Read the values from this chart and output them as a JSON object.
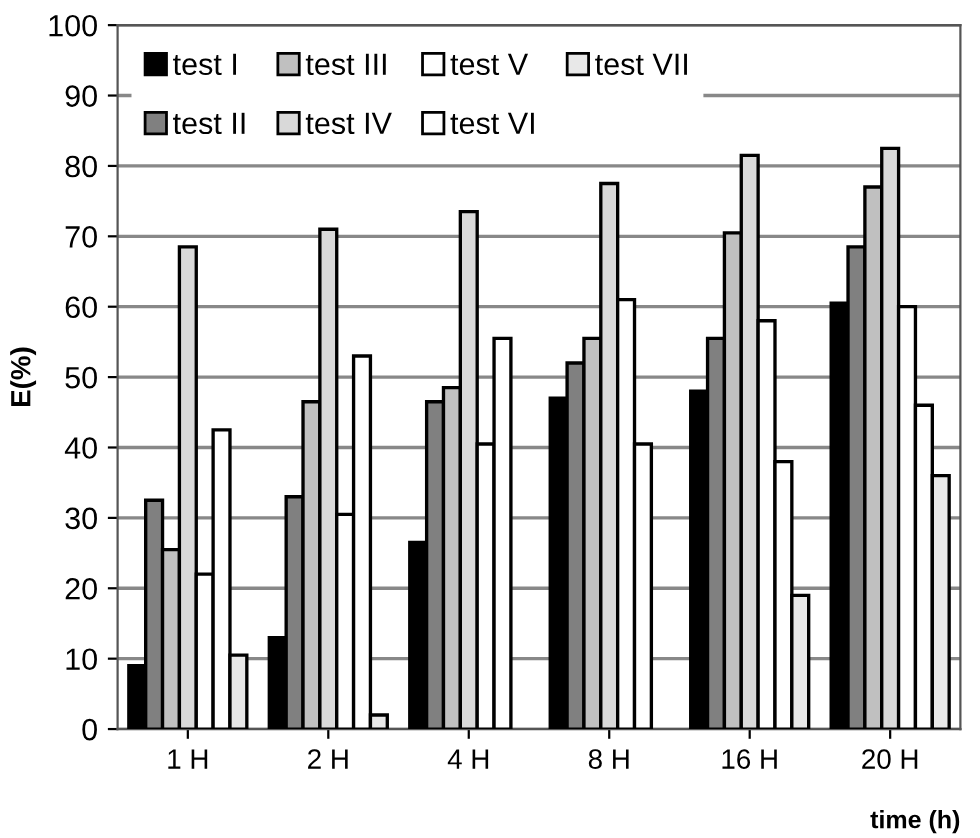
{
  "chart_data": {
    "type": "bar",
    "xlabel": "time (h)",
    "ylabel": "E(%)",
    "categories": [
      "1 H",
      "2 H",
      "4 H",
      "8 H",
      "16 H",
      "20 H"
    ],
    "series": [
      {
        "name": "test I",
        "color": "#000000",
        "values": [
          9,
          13,
          26.5,
          47,
          48,
          60.5
        ]
      },
      {
        "name": "test II",
        "color": "#808080",
        "values": [
          32.5,
          33,
          46.5,
          52,
          55.5,
          68.5
        ]
      },
      {
        "name": "test III",
        "color": "#c0c0c0",
        "values": [
          25.5,
          46.5,
          48.5,
          55.5,
          70.5,
          77
        ]
      },
      {
        "name": "test IV",
        "color": "#d9d9d9",
        "values": [
          68.5,
          71,
          73.5,
          77.5,
          81.5,
          82.5
        ]
      },
      {
        "name": "test V",
        "color": "#ffffff",
        "values": [
          22,
          30.5,
          40.5,
          61,
          58,
          60
        ]
      },
      {
        "name": "test VI",
        "color": "#ffffff",
        "values": [
          42.5,
          53,
          55.5,
          40.5,
          38,
          46
        ]
      },
      {
        "name": "test VII",
        "color": "#e8e8e8",
        "values": [
          10.5,
          2,
          null,
          null,
          19,
          36
        ]
      }
    ],
    "ylim": [
      0,
      100
    ],
    "yticks": [
      0,
      10,
      20,
      30,
      40,
      50,
      60,
      70,
      80,
      90,
      100
    ],
    "grid": "y",
    "legend": "top left"
  }
}
